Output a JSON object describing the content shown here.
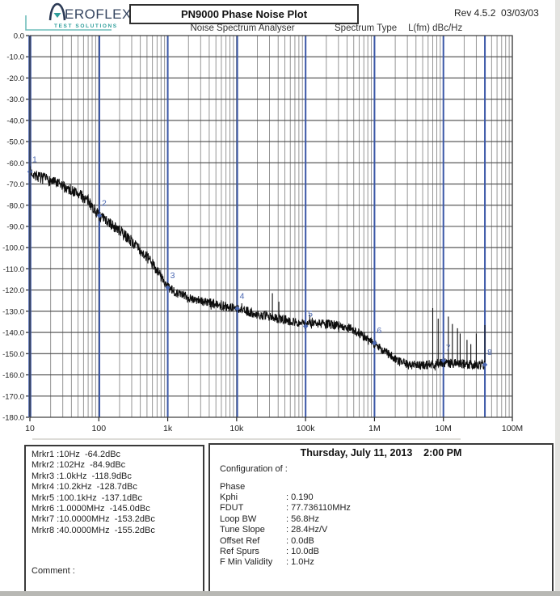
{
  "header": {
    "logo_brand": "EROFLEX",
    "logo_tagline": "TEST SOLUTIONS",
    "title": "PN9000 Phase Noise Plot",
    "revision": "Rev 4.5.2  03/03/03",
    "subtitle": "Noise Spectrum Analyser",
    "spectrum_type_label": "Spectrum Type",
    "spectrum_type_value": "L(fm) dBc/Hz"
  },
  "chart_data": {
    "type": "line",
    "title": "PN9000 Phase Noise Plot",
    "x_scale": "log",
    "xlim": [
      10,
      100000000
    ],
    "ylim": [
      -180,
      0
    ],
    "grid": true,
    "xlabel": "",
    "ylabel": "",
    "x_ticks": [
      "10",
      "100",
      "1k",
      "10k",
      "100k",
      "1M",
      "10M",
      "100M"
    ],
    "x_tick_values": [
      10,
      100,
      1000,
      10000,
      100000,
      1000000,
      10000000,
      100000000
    ],
    "y_ticks": [
      "0.0",
      "-10.0",
      "-20.0",
      "-30.0",
      "-40.0",
      "-50.0",
      "-60.0",
      "-70.0",
      "-80.0",
      "-90.0",
      "-100.0",
      "-110.0",
      "-120.0",
      "-130.0",
      "-140.0",
      "-150.0",
      "-160.0",
      "-170.0",
      "-180.0"
    ],
    "y_tick_values": [
      0,
      -10,
      -20,
      -30,
      -40,
      -50,
      -60,
      -70,
      -80,
      -90,
      -100,
      -110,
      -120,
      -130,
      -140,
      -150,
      -160,
      -170,
      -180
    ],
    "trend": [
      [
        10,
        -64
      ],
      [
        13,
        -66.5
      ],
      [
        20,
        -68.5
      ],
      [
        30,
        -71
      ],
      [
        50,
        -74.5
      ],
      [
        70,
        -78
      ],
      [
        100,
        -84.9
      ],
      [
        150,
        -89
      ],
      [
        200,
        -92
      ],
      [
        300,
        -97
      ],
      [
        500,
        -104.5
      ],
      [
        700,
        -110.5
      ],
      [
        1000,
        -118.9
      ],
      [
        1300,
        -121
      ],
      [
        2000,
        -123.5
      ],
      [
        3000,
        -125
      ],
      [
        5000,
        -126.8
      ],
      [
        10200,
        -128.7
      ],
      [
        20000,
        -131.5
      ],
      [
        50000,
        -134
      ],
      [
        100100,
        -136.2
      ],
      [
        160000,
        -135.8
      ],
      [
        300000,
        -136.5
      ],
      [
        450000,
        -138
      ],
      [
        600000,
        -140.5
      ],
      [
        800000,
        -143
      ],
      [
        1000000,
        -145.3
      ],
      [
        1500000,
        -149.5
      ],
      [
        2200000,
        -153.5
      ],
      [
        3000000,
        -155.2
      ],
      [
        5000000,
        -155.5
      ],
      [
        10000000,
        -154.3
      ],
      [
        20000000,
        -155
      ],
      [
        40000000,
        -155.3
      ]
    ],
    "noise_amplitude_db": 2.3,
    "spurs": [
      [
        33000,
        -121.5
      ],
      [
        41000,
        -125.5
      ],
      [
        115000,
        -131.5
      ],
      [
        125000,
        -133
      ],
      [
        7000000,
        -128.5
      ],
      [
        8400000,
        -133.5
      ],
      [
        11800000,
        -132.5
      ],
      [
        13500000,
        -136
      ],
      [
        16000000,
        -138
      ],
      [
        17500000,
        -140.5
      ],
      [
        22000000,
        -143.5
      ],
      [
        25000000,
        -145.5
      ],
      [
        30000000,
        -140.5
      ],
      [
        40000000,
        -136.5
      ]
    ],
    "markers": [
      {
        "n": "1",
        "f": 10,
        "db": -64.2
      },
      {
        "n": "2",
        "f": 102,
        "db": -84.9
      },
      {
        "n": "3",
        "f": 1000,
        "db": -118.9
      },
      {
        "n": "4",
        "f": 10200,
        "db": -128.7
      },
      {
        "n": "5",
        "f": 100100,
        "db": -137.1
      },
      {
        "n": "6",
        "f": 1000000,
        "db": -145.0
      },
      {
        "n": "7",
        "f": 10000000,
        "db": -153.2
      },
      {
        "n": "8",
        "f": 40000000,
        "db": -155.2
      }
    ],
    "legend": [],
    "trace_color": "#0d0d0d",
    "marker_line_color": "#3a57a7",
    "marker_label_color": "#4a67b2",
    "grid_major_color": "#4a4a4a",
    "grid_minor_color": "#8a8a8a"
  },
  "footer": {
    "markers": [
      "Mrkr1 :10Hz  -64.2dBc",
      "Mrkr2 :102Hz  -84.9dBc",
      "Mrkr3 :1.0kHz  -118.9dBc",
      "Mrkr4 :10.2kHz  -128.7dBc",
      "Mrkr5 :100.1kHz  -137.1dBc",
      "Mrkr6 :1.0000MHz  -145.0dBc",
      "Mrkr7 :10.0000MHz  -153.2dBc",
      "Mrkr8 :40.0000MHz  -155.2dBc"
    ],
    "comment_label": "Comment :",
    "config": {
      "datetime": "Thursday, July 11, 2013    2:00 PM",
      "heading": "Configuration of :",
      "section": "Phase",
      "rows": [
        {
          "label": "Kphi",
          "value": ": 0.190"
        },
        {
          "label": "FDUT",
          "value": ": 77.736110MHz"
        },
        {
          "label": "Loop BW",
          "value": ": 56.8Hz"
        },
        {
          "label": "Tune Slope",
          "value": ": 28.4Hz/V"
        },
        {
          "label": "Offset Ref",
          "value": ": 0.0dB"
        },
        {
          "label": "Ref Spurs",
          "value": ": 10.0dB"
        },
        {
          "label": "F Min Validity",
          "value": ": 1.0Hz"
        }
      ]
    }
  }
}
